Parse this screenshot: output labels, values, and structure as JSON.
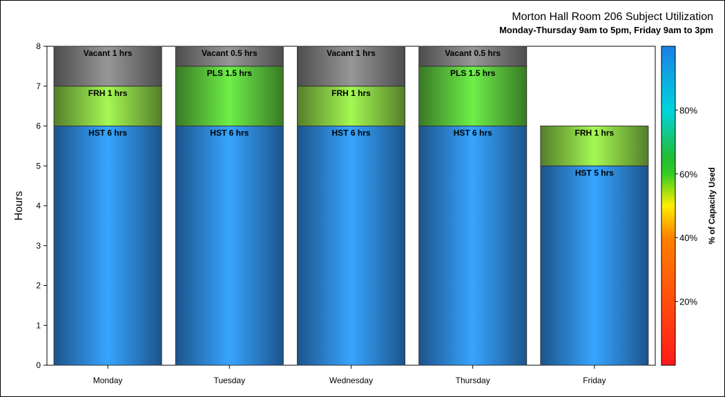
{
  "chart_data": {
    "type": "bar",
    "stacked": true,
    "title": "Morton Hall Room 206 Subject Utilization",
    "subtitle": "Monday-Thursday 9am to 5pm, Friday 9am to 3pm",
    "xlabel": "",
    "ylabel": "Hours",
    "ylim": [
      0,
      8
    ],
    "yticks": [
      "0",
      "1",
      "2",
      "3",
      "4",
      "5",
      "6",
      "7",
      "8"
    ],
    "grid": false,
    "categories": [
      "Monday",
      "Tuesday",
      "Wednesday",
      "Thursday",
      "Friday"
    ],
    "bars": [
      {
        "day": "Monday",
        "segments": [
          {
            "subject": "HST",
            "hours": 6,
            "label": "HST 6 hrs",
            "color": "#3399ff"
          },
          {
            "subject": "FRH",
            "hours": 1,
            "label": "FRH 1 hrs",
            "color": "#99e64d"
          },
          {
            "subject": "Vacant",
            "hours": 1,
            "label": "Vacant 1 hrs",
            "color": "#8c8c8c"
          }
        ]
      },
      {
        "day": "Tuesday",
        "segments": [
          {
            "subject": "HST",
            "hours": 6,
            "label": "HST 6 hrs",
            "color": "#3399ff"
          },
          {
            "subject": "PLS",
            "hours": 1.5,
            "label": "PLS 1.5 hrs",
            "color": "#66dd44"
          },
          {
            "subject": "Vacant",
            "hours": 0.5,
            "label": "Vacant 0.5 hrs",
            "color": "#8c8c8c"
          }
        ]
      },
      {
        "day": "Wednesday",
        "segments": [
          {
            "subject": "HST",
            "hours": 6,
            "label": "HST 6 hrs",
            "color": "#3399ff"
          },
          {
            "subject": "FRH",
            "hours": 1,
            "label": "FRH 1 hrs",
            "color": "#99e64d"
          },
          {
            "subject": "Vacant",
            "hours": 1,
            "label": "Vacant 1 hrs",
            "color": "#8c8c8c"
          }
        ]
      },
      {
        "day": "Thursday",
        "segments": [
          {
            "subject": "HST",
            "hours": 6,
            "label": "HST 6 hrs",
            "color": "#3399ff"
          },
          {
            "subject": "PLS",
            "hours": 1.5,
            "label": "PLS 1.5 hrs",
            "color": "#66dd44"
          },
          {
            "subject": "Vacant",
            "hours": 0.5,
            "label": "Vacant 0.5 hrs",
            "color": "#8c8c8c"
          }
        ]
      },
      {
        "day": "Friday",
        "segments": [
          {
            "subject": "HST",
            "hours": 5,
            "label": "HST 5 hrs",
            "color": "#3399ff"
          },
          {
            "subject": "FRH",
            "hours": 1,
            "label": "FRH 1 hrs",
            "color": "#99e64d"
          }
        ]
      }
    ],
    "colorbar": {
      "label": "% of Capacity Used",
      "range": [
        0,
        100
      ],
      "tick_values": [
        20,
        40,
        60,
        80
      ],
      "tick_labels": [
        "20%",
        "40%",
        "60%",
        "80%"
      ],
      "stops": [
        {
          "value": 0,
          "color": "#ff1a1a"
        },
        {
          "value": 40,
          "color": "#ff8000"
        },
        {
          "value": 50,
          "color": "#ffee00"
        },
        {
          "value": 60,
          "color": "#33cc22"
        },
        {
          "value": 65,
          "color": "#22bb33"
        },
        {
          "value": 80,
          "color": "#00d4dd"
        },
        {
          "value": 100,
          "color": "#1a7fe6"
        }
      ]
    }
  }
}
